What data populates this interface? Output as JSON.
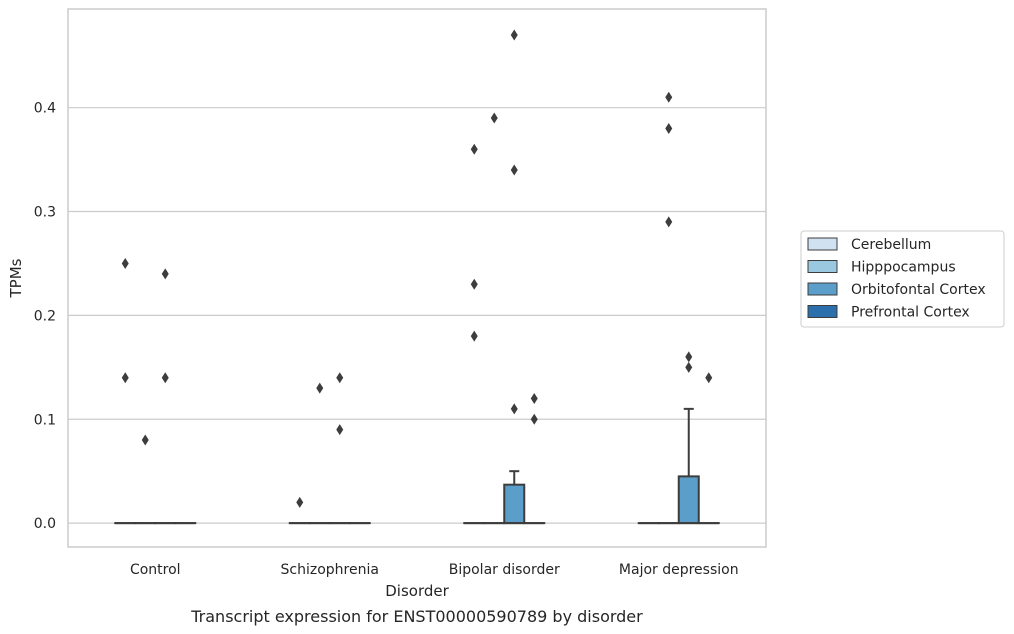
{
  "chart_data": {
    "type": "boxplot",
    "title": "Transcript expression for ENST00000590789 by disorder",
    "xlabel": "Disorder",
    "ylabel": "TPMs",
    "ylim": [
      -0.023,
      0.495
    ],
    "yticks": [
      "0.0",
      "0.1",
      "0.2",
      "0.3",
      "0.4"
    ],
    "ytick_values": [
      0.0,
      0.1,
      0.2,
      0.3,
      0.4
    ],
    "grid": "horizontal",
    "legend_position": "right",
    "categories": [
      "Control",
      "Schizophrenia",
      "Bipolar disorder",
      "Major depression"
    ],
    "series": [
      {
        "name": "Cerebellum",
        "color": "#d0e1f2"
      },
      {
        "name": "Hipppocampus",
        "color": "#9ac8e0"
      },
      {
        "name": "Orbitofontal Cortex",
        "color": "#5a9ec9"
      },
      {
        "name": "Prefrontal Cortex",
        "color": "#2c6fad"
      }
    ],
    "boxes": [
      {
        "category": 0,
        "series": 0,
        "q1": 0,
        "median": 0,
        "q3": 0,
        "whisker_low": 0,
        "whisker_high": 0,
        "outliers": [
          0.25,
          0.14
        ]
      },
      {
        "category": 0,
        "series": 1,
        "q1": 0,
        "median": 0,
        "q3": 0,
        "whisker_low": 0,
        "whisker_high": 0,
        "outliers": [
          0.08
        ]
      },
      {
        "category": 0,
        "series": 2,
        "q1": 0,
        "median": 0,
        "q3": 0,
        "whisker_low": 0,
        "whisker_high": 0,
        "outliers": [
          0.24,
          0.14
        ]
      },
      {
        "category": 0,
        "series": 3,
        "q1": 0,
        "median": 0,
        "q3": 0,
        "whisker_low": 0,
        "whisker_high": 0,
        "outliers": []
      },
      {
        "category": 1,
        "series": 0,
        "q1": 0,
        "median": 0,
        "q3": 0,
        "whisker_low": 0,
        "whisker_high": 0,
        "outliers": [
          0.02
        ]
      },
      {
        "category": 1,
        "series": 1,
        "q1": 0,
        "median": 0,
        "q3": 0,
        "whisker_low": 0,
        "whisker_high": 0,
        "outliers": [
          0.13
        ]
      },
      {
        "category": 1,
        "series": 2,
        "q1": 0,
        "median": 0,
        "q3": 0,
        "whisker_low": 0,
        "whisker_high": 0,
        "outliers": [
          0.14,
          0.09
        ]
      },
      {
        "category": 1,
        "series": 3,
        "q1": 0,
        "median": 0,
        "q3": 0,
        "whisker_low": 0,
        "whisker_high": 0,
        "outliers": []
      },
      {
        "category": 2,
        "series": 0,
        "q1": 0,
        "median": 0,
        "q3": 0,
        "whisker_low": 0,
        "whisker_high": 0,
        "outliers": [
          0.36,
          0.23,
          0.18
        ]
      },
      {
        "category": 2,
        "series": 1,
        "q1": 0,
        "median": 0,
        "q3": 0,
        "whisker_low": 0,
        "whisker_high": 0,
        "outliers": [
          0.39
        ]
      },
      {
        "category": 2,
        "series": 2,
        "q1": 0,
        "median": 0,
        "q3": 0.037,
        "whisker_low": 0,
        "whisker_high": 0.05,
        "outliers": [
          0.47,
          0.34,
          0.11
        ]
      },
      {
        "category": 2,
        "series": 3,
        "q1": 0,
        "median": 0,
        "q3": 0,
        "whisker_low": 0,
        "whisker_high": 0,
        "outliers": [
          0.12,
          0.1
        ]
      },
      {
        "category": 3,
        "series": 0,
        "q1": 0,
        "median": 0,
        "q3": 0,
        "whisker_low": 0,
        "whisker_high": 0,
        "outliers": []
      },
      {
        "category": 3,
        "series": 1,
        "q1": 0,
        "median": 0,
        "q3": 0,
        "whisker_low": 0,
        "whisker_high": 0,
        "outliers": [
          0.41,
          0.38,
          0.29
        ]
      },
      {
        "category": 3,
        "series": 2,
        "q1": 0,
        "median": 0,
        "q3": 0.045,
        "whisker_low": 0,
        "whisker_high": 0.11,
        "outliers": [
          0.16,
          0.15
        ]
      },
      {
        "category": 3,
        "series": 3,
        "q1": 0,
        "median": 0,
        "q3": 0,
        "whisker_low": 0,
        "whisker_high": 0,
        "outliers": [
          0.14
        ]
      }
    ]
  }
}
